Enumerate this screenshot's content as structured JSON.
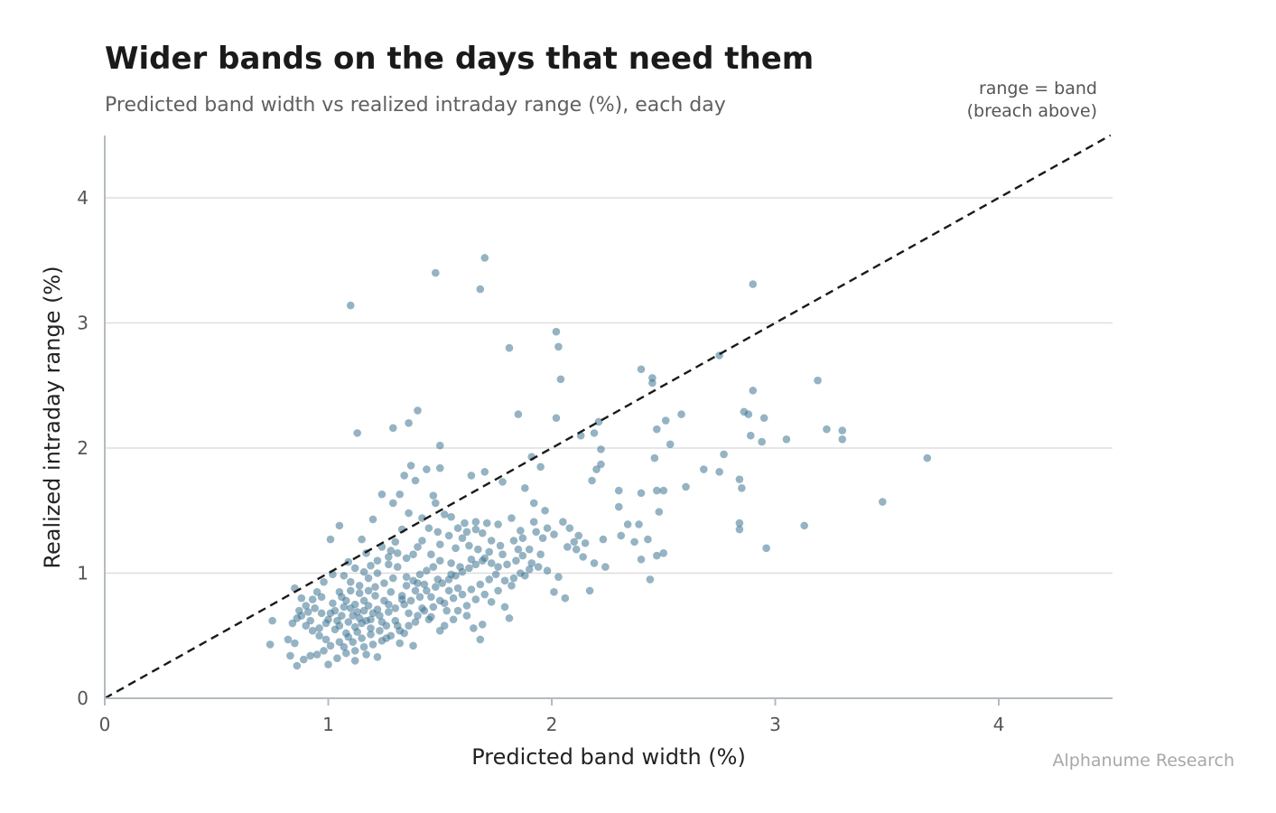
{
  "chart_data": {
    "type": "scatter",
    "title": "Wider bands on the days that need them",
    "subtitle": "Predicted band width vs realized intraday range (%), each day",
    "xlabel": "Predicted band width (%)",
    "ylabel": "Realized intraday range (%)",
    "xlim": [
      0,
      4.5
    ],
    "ylim": [
      0,
      4.5
    ],
    "xticks": [
      "0",
      "1",
      "2",
      "3",
      "4"
    ],
    "yticks": [
      "0",
      "1",
      "2",
      "3",
      "4"
    ],
    "grid": "horizontal",
    "reference_line": {
      "label_line1": "range = band",
      "label_line2": "(breach above)",
      "slope": 1,
      "style": "dashed"
    },
    "source": "Alphanume Research",
    "point_color": "#3e7592",
    "points": [
      [
        1.1,
        3.14
      ],
      [
        1.48,
        3.4
      ],
      [
        1.7,
        3.52
      ],
      [
        1.68,
        3.27
      ],
      [
        2.9,
        3.31
      ],
      [
        2.02,
        2.93
      ],
      [
        2.03,
        2.81
      ],
      [
        1.81,
        2.8
      ],
      [
        2.04,
        2.55
      ],
      [
        2.75,
        2.74
      ],
      [
        2.4,
        2.63
      ],
      [
        2.45,
        2.56
      ],
      [
        2.45,
        2.52
      ],
      [
        3.19,
        2.54
      ],
      [
        1.13,
        2.12
      ],
      [
        1.29,
        2.16
      ],
      [
        1.36,
        2.2
      ],
      [
        1.4,
        2.3
      ],
      [
        1.5,
        2.02
      ],
      [
        1.85,
        2.27
      ],
      [
        2.02,
        2.24
      ],
      [
        2.21,
        2.21
      ],
      [
        2.19,
        2.12
      ],
      [
        2.13,
        2.1
      ],
      [
        2.86,
        2.29
      ],
      [
        2.88,
        2.27
      ],
      [
        2.9,
        2.46
      ],
      [
        2.95,
        2.24
      ],
      [
        3.23,
        2.15
      ],
      [
        3.3,
        2.14
      ],
      [
        3.3,
        2.07
      ],
      [
        3.05,
        2.07
      ],
      [
        2.94,
        2.05
      ],
      [
        2.89,
        2.1
      ],
      [
        2.58,
        2.27
      ],
      [
        2.51,
        2.22
      ],
      [
        2.47,
        2.15
      ],
      [
        2.53,
        2.03
      ],
      [
        2.46,
        1.92
      ],
      [
        2.22,
        1.99
      ],
      [
        1.91,
        1.93
      ],
      [
        3.68,
        1.92
      ],
      [
        2.77,
        1.95
      ],
      [
        2.22,
        1.87
      ],
      [
        2.2,
        1.83
      ],
      [
        2.18,
        1.74
      ],
      [
        2.3,
        1.66
      ],
      [
        2.4,
        1.64
      ],
      [
        2.5,
        1.66
      ],
      [
        2.47,
        1.66
      ],
      [
        2.6,
        1.69
      ],
      [
        2.75,
        1.81
      ],
      [
        2.84,
        1.75
      ],
      [
        2.85,
        1.68
      ],
      [
        3.48,
        1.57
      ],
      [
        2.48,
        1.49
      ],
      [
        2.3,
        1.53
      ],
      [
        1.7,
        1.81
      ],
      [
        1.64,
        1.78
      ],
      [
        1.78,
        1.73
      ],
      [
        1.95,
        1.85
      ],
      [
        1.88,
        1.68
      ],
      [
        1.92,
        1.56
      ],
      [
        1.97,
        1.5
      ],
      [
        1.5,
        1.84
      ],
      [
        1.44,
        1.83
      ],
      [
        1.34,
        1.78
      ],
      [
        1.37,
        1.86
      ],
      [
        1.39,
        1.74
      ],
      [
        1.32,
        1.63
      ],
      [
        1.47,
        1.62
      ],
      [
        1.24,
        1.63
      ],
      [
        1.29,
        1.56
      ],
      [
        1.36,
        1.48
      ],
      [
        1.42,
        1.44
      ],
      [
        1.48,
        1.56
      ],
      [
        1.52,
        1.47
      ],
      [
        1.55,
        1.45
      ],
      [
        1.61,
        1.4
      ],
      [
        1.66,
        1.41
      ],
      [
        1.71,
        1.4
      ],
      [
        1.76,
        1.39
      ],
      [
        1.82,
        1.44
      ],
      [
        1.86,
        1.34
      ],
      [
        1.92,
        1.41
      ],
      [
        1.96,
        1.28
      ],
      [
        2.01,
        1.31
      ],
      [
        2.08,
        1.36
      ],
      [
        2.12,
        1.3
      ],
      [
        2.07,
        1.21
      ],
      [
        2.14,
        1.13
      ],
      [
        2.19,
        1.08
      ],
      [
        2.24,
        1.05
      ],
      [
        2.17,
        0.86
      ],
      [
        2.06,
        0.8
      ],
      [
        2.01,
        0.85
      ],
      [
        2.23,
        1.27
      ],
      [
        2.31,
        1.3
      ],
      [
        2.37,
        1.25
      ],
      [
        2.43,
        1.27
      ],
      [
        2.47,
        1.14
      ],
      [
        2.5,
        1.16
      ],
      [
        2.4,
        1.11
      ],
      [
        2.44,
        0.95
      ],
      [
        2.68,
        1.83
      ],
      [
        2.84,
        1.35
      ],
      [
        2.84,
        1.4
      ],
      [
        2.96,
        1.2
      ],
      [
        3.13,
        1.38
      ],
      [
        2.34,
        1.39
      ],
      [
        2.39,
        1.39
      ],
      [
        1.2,
        1.43
      ],
      [
        1.05,
        1.38
      ],
      [
        1.01,
        1.27
      ],
      [
        1.15,
        1.27
      ],
      [
        1.24,
        1.21
      ],
      [
        1.17,
        1.16
      ],
      [
        1.27,
        1.13
      ],
      [
        1.3,
        1.25
      ],
      [
        1.33,
        1.35
      ],
      [
        1.4,
        1.21
      ],
      [
        1.46,
        1.15
      ],
      [
        1.5,
        1.1
      ],
      [
        1.55,
        1.08
      ],
      [
        1.57,
        1.2
      ],
      [
        1.6,
        1.28
      ],
      [
        1.63,
        1.22
      ],
      [
        1.67,
        1.19
      ],
      [
        1.7,
        1.12
      ],
      [
        1.73,
        1.08
      ],
      [
        1.76,
        1.05
      ],
      [
        1.8,
        1.07
      ],
      [
        1.84,
        1.1
      ],
      [
        1.87,
        1.14
      ],
      [
        1.91,
        1.08
      ],
      [
        1.94,
        1.05
      ],
      [
        1.98,
        1.02
      ],
      [
        2.03,
        0.97
      ],
      [
        1.88,
        0.98
      ],
      [
        1.82,
        0.9
      ],
      [
        1.76,
        0.86
      ],
      [
        1.7,
        0.83
      ],
      [
        1.66,
        0.79
      ],
      [
        1.62,
        0.74
      ],
      [
        1.58,
        0.7
      ],
      [
        1.56,
        0.63
      ],
      [
        1.52,
        0.58
      ],
      [
        1.5,
        0.54
      ],
      [
        1.45,
        0.63
      ],
      [
        1.42,
        0.72
      ],
      [
        1.46,
        0.81
      ],
      [
        1.4,
        0.92
      ],
      [
        1.35,
        0.97
      ],
      [
        1.31,
        1.05
      ],
      [
        1.27,
        1.07
      ],
      [
        1.22,
        1.0
      ],
      [
        1.18,
        0.96
      ],
      [
        1.14,
        0.9
      ],
      [
        1.1,
        0.93
      ],
      [
        1.07,
        0.98
      ],
      [
        1.02,
        0.99
      ],
      [
        0.98,
        0.93
      ],
      [
        0.95,
        0.85
      ],
      [
        0.93,
        0.79
      ],
      [
        0.9,
        0.74
      ],
      [
        0.87,
        0.7
      ],
      [
        0.85,
        0.88
      ],
      [
        0.88,
        0.8
      ],
      [
        0.84,
        0.6
      ],
      [
        0.86,
        0.64
      ],
      [
        0.88,
        0.66
      ],
      [
        0.9,
        0.58
      ],
      [
        0.93,
        0.54
      ],
      [
        0.96,
        0.5
      ],
      [
        0.99,
        0.47
      ],
      [
        1.01,
        0.42
      ],
      [
        0.98,
        0.38
      ],
      [
        0.95,
        0.35
      ],
      [
        0.92,
        0.34
      ],
      [
        0.89,
        0.31
      ],
      [
        0.86,
        0.26
      ],
      [
        0.83,
        0.34
      ],
      [
        0.82,
        0.47
      ],
      [
        0.85,
        0.44
      ],
      [
        0.75,
        0.62
      ],
      [
        0.74,
        0.43
      ],
      [
        1.0,
        0.27
      ],
      [
        1.04,
        0.32
      ],
      [
        1.08,
        0.36
      ],
      [
        1.12,
        0.38
      ],
      [
        1.16,
        0.41
      ],
      [
        1.2,
        0.43
      ],
      [
        1.24,
        0.46
      ],
      [
        1.28,
        0.5
      ],
      [
        1.32,
        0.54
      ],
      [
        1.36,
        0.58
      ],
      [
        1.39,
        0.61
      ],
      [
        1.38,
        0.42
      ],
      [
        1.32,
        0.44
      ],
      [
        1.26,
        0.48
      ],
      [
        1.22,
        0.33
      ],
      [
        1.17,
        0.35
      ],
      [
        1.12,
        0.3
      ],
      [
        1.05,
        0.45
      ],
      [
        1.08,
        0.52
      ],
      [
        1.12,
        0.57
      ],
      [
        1.15,
        0.6
      ],
      [
        1.19,
        0.63
      ],
      [
        1.23,
        0.66
      ],
      [
        1.27,
        0.69
      ],
      [
        1.3,
        0.72
      ],
      [
        1.34,
        0.75
      ],
      [
        1.37,
        0.78
      ],
      [
        1.41,
        0.81
      ],
      [
        1.44,
        0.86
      ],
      [
        1.48,
        0.89
      ],
      [
        1.51,
        0.92
      ],
      [
        1.54,
        0.95
      ],
      [
        1.57,
        0.98
      ],
      [
        1.6,
        1.01
      ],
      [
        1.63,
        1.04
      ],
      [
        1.66,
        1.07
      ],
      [
        1.69,
        1.1
      ],
      [
        1.08,
        0.78
      ],
      [
        1.1,
        0.72
      ],
      [
        1.13,
        0.69
      ],
      [
        1.16,
        0.7
      ],
      [
        1.18,
        0.74
      ],
      [
        1.11,
        0.66
      ],
      [
        1.14,
        0.64
      ],
      [
        1.17,
        0.62
      ],
      [
        1.2,
        0.68
      ],
      [
        1.09,
        0.61
      ],
      [
        1.06,
        0.66
      ],
      [
        1.03,
        0.7
      ],
      [
        1.0,
        0.63
      ],
      [
        0.97,
        0.68
      ],
      [
        1.05,
        0.58
      ],
      [
        1.22,
        0.71
      ],
      [
        1.25,
        0.78
      ],
      [
        1.21,
        0.82
      ],
      [
        1.18,
        0.86
      ],
      [
        1.14,
        0.84
      ],
      [
        1.1,
        0.86
      ],
      [
        1.06,
        0.81
      ],
      [
        1.02,
        0.76
      ],
      [
        1.28,
        0.85
      ],
      [
        1.3,
        0.62
      ],
      [
        1.26,
        0.58
      ],
      [
        1.23,
        0.54
      ],
      [
        1.19,
        0.51
      ],
      [
        1.15,
        0.48
      ],
      [
        1.11,
        0.45
      ],
      [
        1.07,
        0.41
      ],
      [
        1.03,
        0.55
      ],
      [
        0.99,
        0.6
      ],
      [
        0.96,
        0.56
      ],
      [
        0.92,
        0.62
      ],
      [
        1.35,
        0.9
      ],
      [
        1.38,
        0.94
      ],
      [
        1.41,
        0.99
      ],
      [
        1.44,
        1.02
      ],
      [
        1.47,
        1.05
      ],
      [
        1.33,
        0.82
      ],
      [
        1.36,
        0.68
      ],
      [
        1.4,
        0.66
      ],
      [
        1.43,
        0.7
      ],
      [
        1.47,
        0.73
      ],
      [
        1.52,
        0.76
      ],
      [
        1.56,
        0.8
      ],
      [
        1.6,
        0.83
      ],
      [
        1.64,
        0.87
      ],
      [
        1.68,
        0.91
      ],
      [
        1.72,
        0.95
      ],
      [
        1.75,
        0.99
      ],
      [
        1.79,
        0.94
      ],
      [
        1.83,
        0.96
      ],
      [
        1.86,
        1.0
      ],
      [
        1.9,
        1.03
      ],
      [
        1.73,
        0.77
      ],
      [
        1.79,
        0.73
      ],
      [
        1.81,
        0.64
      ],
      [
        1.69,
        0.59
      ],
      [
        1.65,
        0.56
      ],
      [
        1.68,
        0.47
      ],
      [
        1.62,
        0.66
      ],
      [
        1.58,
        0.88
      ],
      [
        1.54,
        0.86
      ],
      [
        1.5,
        0.78
      ],
      [
        1.53,
        0.7
      ],
      [
        1.46,
        0.65
      ],
      [
        1.29,
        0.96
      ],
      [
        1.25,
        0.92
      ],
      [
        1.21,
        0.89
      ],
      [
        1.31,
        0.58
      ],
      [
        1.34,
        0.52
      ],
      [
        1.19,
        0.56
      ],
      [
        1.13,
        0.53
      ],
      [
        1.09,
        0.49
      ],
      [
        1.24,
        0.61
      ],
      [
        1.04,
        0.62
      ],
      [
        1.01,
        0.68
      ],
      [
        0.94,
        0.72
      ],
      [
        0.91,
        0.69
      ],
      [
        1.16,
        0.78
      ],
      [
        1.12,
        0.75
      ],
      [
        1.07,
        0.73
      ],
      [
        1.05,
        0.85
      ],
      [
        0.97,
        0.81
      ],
      [
        1.27,
        0.75
      ],
      [
        1.33,
        0.79
      ],
      [
        1.39,
        0.86
      ],
      [
        1.43,
        0.91
      ],
      [
        1.49,
        0.95
      ],
      [
        1.55,
        0.99
      ],
      [
        1.59,
        1.05
      ],
      [
        1.64,
        1.11
      ],
      [
        1.72,
        1.17
      ],
      [
        1.77,
        1.22
      ],
      [
        1.83,
        1.26
      ],
      [
        1.87,
        1.28
      ],
      [
        1.93,
        1.33
      ],
      [
        1.98,
        1.36
      ],
      [
        2.05,
        1.41
      ],
      [
        2.1,
        1.25
      ],
      [
        2.15,
        1.24
      ],
      [
        2.11,
        1.19
      ],
      [
        1.95,
        1.15
      ],
      [
        1.9,
        1.19
      ],
      [
        1.85,
        1.19
      ],
      [
        1.78,
        1.15
      ],
      [
        1.73,
        1.26
      ],
      [
        1.69,
        1.32
      ],
      [
        1.66,
        1.35
      ],
      [
        1.62,
        1.33
      ],
      [
        1.58,
        1.36
      ],
      [
        1.54,
        1.3
      ],
      [
        1.49,
        1.33
      ],
      [
        1.45,
        1.36
      ],
      [
        1.42,
        1.26
      ],
      [
        1.38,
        1.15
      ],
      [
        1.35,
        1.12
      ],
      [
        1.31,
        1.16
      ],
      [
        1.28,
        1.18
      ],
      [
        1.22,
        1.1
      ],
      [
        1.19,
        1.06
      ],
      [
        1.16,
        1.01
      ],
      [
        1.12,
        1.04
      ],
      [
        1.09,
        1.09
      ],
      [
        1.5,
        1.23
      ]
    ]
  }
}
